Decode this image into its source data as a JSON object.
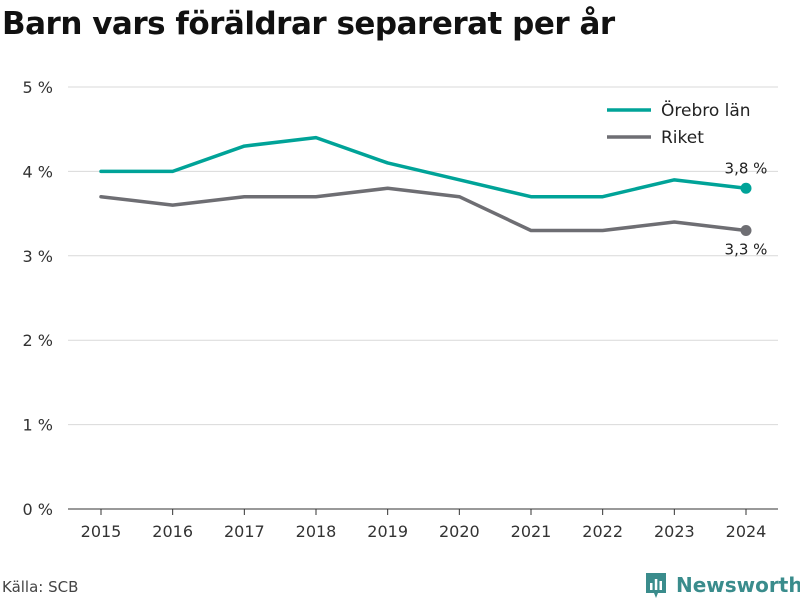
{
  "title": "Barn vars föräldrar separerat per år",
  "source": "Källa: SCB",
  "brand": {
    "name": "Newsworthy",
    "icon": "bar-chart-logo-icon",
    "color": "#3a8c8c"
  },
  "chart_data": {
    "type": "line",
    "title": "Barn vars föräldrar separerat per år",
    "x": [
      "2015",
      "2016",
      "2017",
      "2018",
      "2019",
      "2020",
      "2021",
      "2022",
      "2023",
      "2024"
    ],
    "series": [
      {
        "name": "Örebro län",
        "color": "#00a398",
        "values": [
          4.0,
          4.0,
          4.3,
          4.4,
          4.1,
          3.9,
          3.7,
          3.7,
          3.9,
          3.8
        ],
        "end_label": "3,8 %"
      },
      {
        "name": "Riket",
        "color": "#6e6e73",
        "values": [
          3.7,
          3.6,
          3.7,
          3.7,
          3.8,
          3.7,
          3.3,
          3.3,
          3.4,
          3.3
        ],
        "end_label": "3,3 %"
      }
    ],
    "ylim": [
      0,
      5
    ],
    "y_ticks": [
      "0 %",
      "1 %",
      "2 %",
      "3 %",
      "4 %",
      "5 %"
    ],
    "grid": true,
    "legend_position": "top-right",
    "xlabel": "",
    "ylabel": ""
  }
}
